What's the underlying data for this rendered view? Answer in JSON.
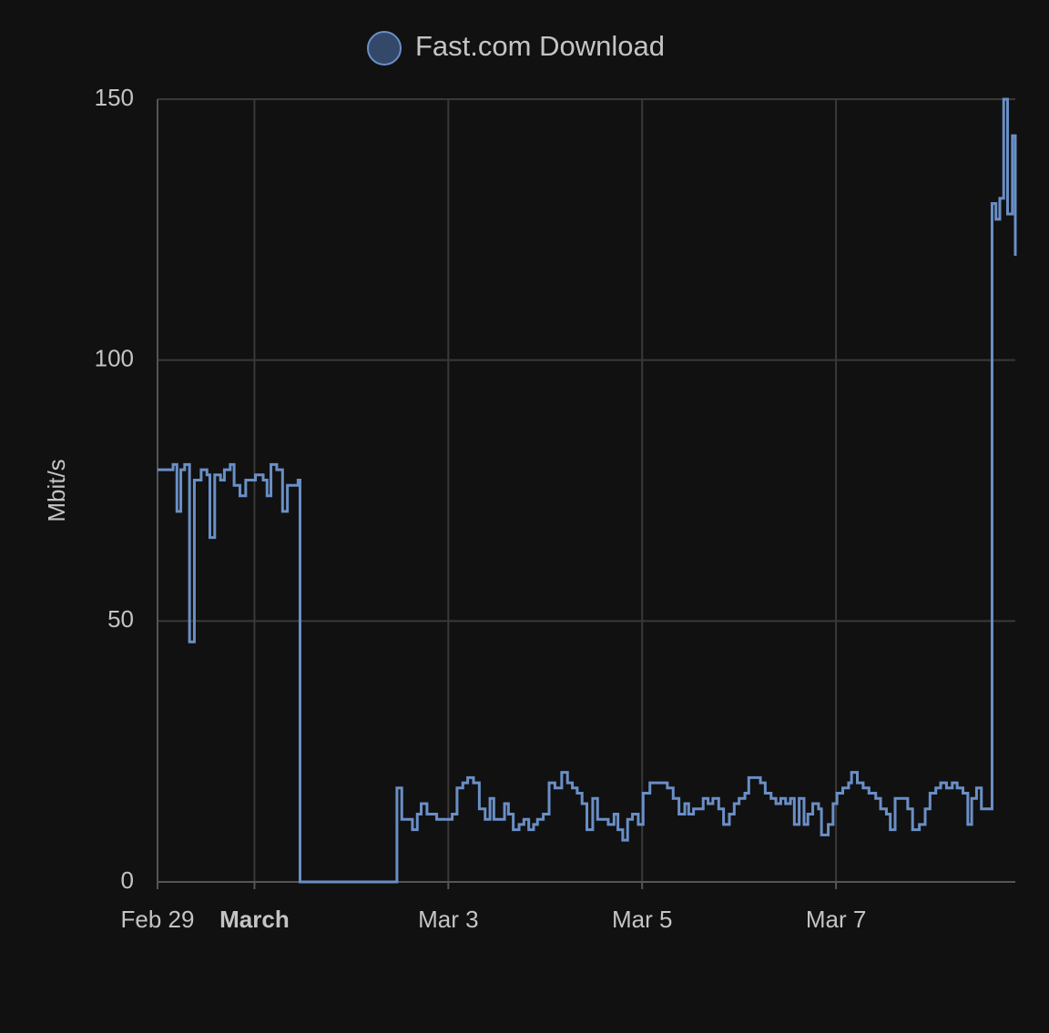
{
  "chart_data": {
    "type": "line",
    "step": true,
    "y_label": "Mbit/s",
    "xlim": [
      0,
      8.85
    ],
    "xticks": [
      {
        "value": 0,
        "label": "Feb 29"
      },
      {
        "value": 1,
        "label": "March",
        "bold": true
      },
      {
        "value": 3,
        "label": "Mar 3"
      },
      {
        "value": 5,
        "label": "Mar 5"
      },
      {
        "value": 7,
        "label": "Mar 7"
      }
    ],
    "ylim": [
      0,
      150
    ],
    "yticks": [
      0,
      50,
      100,
      150
    ],
    "grid": true,
    "legend": "top",
    "x": [
      0,
      0.07,
      0.16,
      0.2,
      0.24,
      0.28,
      0.33,
      0.38,
      0.45,
      0.51,
      0.54,
      0.59,
      0.65,
      0.69,
      0.75,
      0.79,
      0.85,
      0.91,
      1.01,
      1.09,
      1.13,
      1.17,
      1.23,
      1.29,
      1.34,
      1.4,
      1.45,
      1.47,
      2.47,
      2.52,
      2.57,
      2.63,
      2.68,
      2.72,
      2.78,
      2.84,
      2.88,
      2.95,
      3.04,
      3.09,
      3.15,
      3.2,
      3.26,
      3.32,
      3.38,
      3.43,
      3.47,
      3.53,
      3.58,
      3.62,
      3.67,
      3.73,
      3.78,
      3.83,
      3.88,
      3.92,
      3.98,
      4.04,
      4.1,
      4.17,
      4.23,
      4.28,
      4.33,
      4.38,
      4.43,
      4.49,
      4.54,
      4.6,
      4.65,
      4.71,
      4.75,
      4.8,
      4.85,
      4.9,
      4.96,
      5.01,
      5.08,
      5.13,
      5.19,
      5.26,
      5.32,
      5.38,
      5.44,
      5.48,
      5.53,
      5.58,
      5.63,
      5.68,
      5.73,
      5.79,
      5.84,
      5.9,
      5.95,
      6.0,
      6.06,
      6.1,
      6.16,
      6.22,
      6.27,
      6.33,
      6.38,
      6.43,
      6.48,
      6.53,
      6.57,
      6.62,
      6.67,
      6.71,
      6.76,
      6.82,
      6.85,
      6.92,
      6.97,
      7.01,
      7.07,
      7.13,
      7.16,
      7.22,
      7.28,
      7.34,
      7.41,
      7.46,
      7.52,
      7.56,
      7.61,
      7.67,
      7.74,
      7.79,
      7.86,
      7.92,
      7.97,
      8.03,
      8.08,
      8.14,
      8.2,
      8.25,
      8.31,
      8.36,
      8.4,
      8.45,
      8.5,
      8.59,
      8.61,
      8.65,
      8.69,
      8.73,
      8.77,
      8.82,
      8.85
    ],
    "series": [
      {
        "name": "Fast.com Download",
        "color": "#6a8fc6",
        "values": [
          79,
          79,
          80,
          71,
          79,
          80,
          46,
          77,
          79,
          78,
          66,
          78,
          77,
          79,
          80,
          76,
          74,
          77,
          78,
          77,
          74,
          80,
          79,
          71,
          76,
          76,
          77,
          0,
          18,
          12,
          12,
          10,
          13,
          15,
          13,
          13,
          12,
          12,
          13,
          18,
          19,
          20,
          19,
          14,
          12,
          16,
          12,
          12,
          15,
          13,
          10,
          11,
          12,
          10,
          11,
          12,
          13,
          19,
          18,
          21,
          19,
          18,
          17,
          15,
          10,
          16,
          12,
          12,
          11,
          13,
          10,
          8,
          12,
          13,
          11,
          17,
          19,
          19,
          19,
          18,
          16,
          13,
          15,
          13,
          14,
          14,
          16,
          15,
          16,
          14,
          11,
          13,
          15,
          16,
          17,
          20,
          20,
          19,
          17,
          16,
          15,
          16,
          15,
          16,
          11,
          16,
          11,
          13,
          15,
          14,
          9,
          11,
          15,
          17,
          18,
          19,
          21,
          19,
          18,
          17,
          16,
          14,
          13,
          10,
          16,
          16,
          14,
          10,
          11,
          14,
          17,
          18,
          19,
          18,
          19,
          18,
          17,
          11,
          16,
          18,
          14,
          14,
          130,
          127,
          131,
          150,
          128,
          143,
          120
        ]
      }
    ]
  }
}
